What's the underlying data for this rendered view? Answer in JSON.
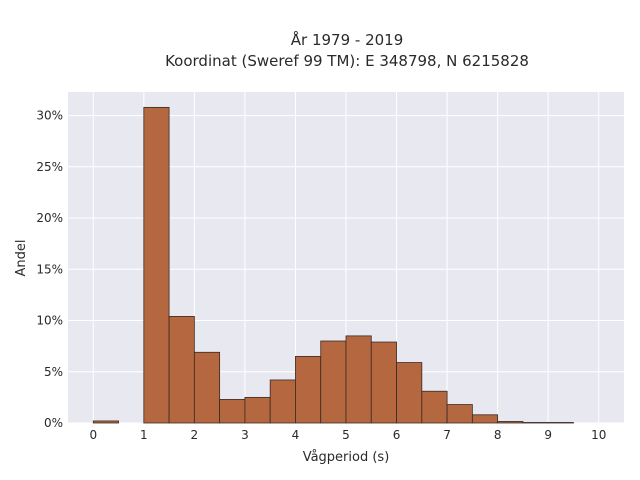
{
  "chart_data": {
    "type": "bar",
    "title_line1": "År 1979 - 2019",
    "title_line2": "Koordinat (Sweref 99 TM): E 348798, N 6215828",
    "xlabel": "Vågperiod (s)",
    "ylabel": "Andel",
    "bin_width": 0.5,
    "bins": [
      {
        "x0": 0.0,
        "value": 0.2
      },
      {
        "x0": 0.5,
        "value": 0.0
      },
      {
        "x0": 1.0,
        "value": 30.8
      },
      {
        "x0": 1.5,
        "value": 10.4
      },
      {
        "x0": 2.0,
        "value": 6.9
      },
      {
        "x0": 2.5,
        "value": 2.3
      },
      {
        "x0": 3.0,
        "value": 2.5
      },
      {
        "x0": 3.5,
        "value": 4.2
      },
      {
        "x0": 4.0,
        "value": 6.5
      },
      {
        "x0": 4.5,
        "value": 8.0
      },
      {
        "x0": 5.0,
        "value": 8.5
      },
      {
        "x0": 5.5,
        "value": 7.9
      },
      {
        "x0": 6.0,
        "value": 5.9
      },
      {
        "x0": 6.5,
        "value": 3.1
      },
      {
        "x0": 7.0,
        "value": 1.8
      },
      {
        "x0": 7.5,
        "value": 0.8
      },
      {
        "x0": 8.0,
        "value": 0.15
      },
      {
        "x0": 8.5,
        "value": 0.05
      },
      {
        "x0": 9.0,
        "value": 0.05
      }
    ],
    "xlim": [
      -0.5,
      10.5
    ],
    "ylim": [
      0,
      32.3
    ],
    "x_ticks": [
      0,
      1,
      2,
      3,
      4,
      5,
      6,
      7,
      8,
      9,
      10
    ],
    "x_tick_labels": [
      "0",
      "1",
      "2",
      "3",
      "4",
      "5",
      "6",
      "7",
      "8",
      "9",
      "10"
    ],
    "y_ticks": [
      0,
      5,
      10,
      15,
      20,
      25,
      30
    ],
    "y_tick_labels": [
      "0%",
      "5%",
      "10%",
      "15%",
      "20%",
      "25%",
      "30%"
    ],
    "grid": true,
    "colors": {
      "bar_fill": "#b5683f",
      "bar_stroke": "#3a2a22",
      "plot_background": "#e8e8f1",
      "grid": "#ffffff"
    }
  }
}
